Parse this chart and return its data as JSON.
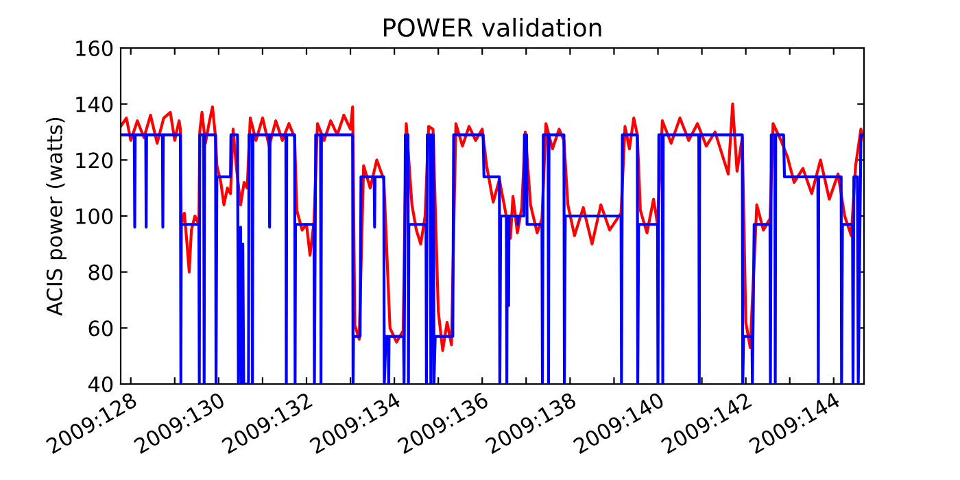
{
  "chart_data": {
    "type": "line",
    "title": "POWER validation",
    "ylabel": "ACIS power (watts)",
    "xlim": [
      "2009-05-07T18:29",
      "2009-05-24T16:34"
    ],
    "ylim": [
      40,
      160
    ],
    "xticks": [
      {
        "value": "2009-05-08",
        "label": "2009:128"
      },
      {
        "value": "2009-05-09",
        "label": null
      },
      {
        "value": "2009-05-10",
        "label": "2009:130"
      },
      {
        "value": "2009-05-11",
        "label": null
      },
      {
        "value": "2009-05-12",
        "label": "2009:132"
      },
      {
        "value": "2009-05-13",
        "label": null
      },
      {
        "value": "2009-05-14",
        "label": "2009:134"
      },
      {
        "value": "2009-05-15",
        "label": null
      },
      {
        "value": "2009-05-16",
        "label": "2009:136"
      },
      {
        "value": "2009-05-17",
        "label": null
      },
      {
        "value": "2009-05-18",
        "label": "2009:138"
      },
      {
        "value": "2009-05-19",
        "label": null
      },
      {
        "value": "2009-05-20",
        "label": "2009:140"
      },
      {
        "value": "2009-05-21",
        "label": null
      },
      {
        "value": "2009-05-22",
        "label": "2009:142"
      },
      {
        "value": "2009-05-23",
        "label": null
      },
      {
        "value": "2009-05-24",
        "label": "2009:144"
      }
    ],
    "yticks": [
      40,
      60,
      80,
      100,
      120,
      140,
      160
    ],
    "grid": false,
    "legend": false,
    "marker": "none",
    "line_style": "solid",
    "series": [
      {
        "color": "#ff0000",
        "x": [
          "2009-05-07T18:29",
          "2009-05-07T21:36",
          "2009-05-08T00:00",
          "2009-05-08T03:36",
          "2009-05-08T07:12",
          "2009-05-08T10:48",
          "2009-05-08T14:24",
          "2009-05-08T18:00",
          "2009-05-08T21:36",
          "2009-05-09T00:00",
          "2009-05-09T02:24",
          "2009-05-09T03:07",
          "2009-05-09T03:36",
          "2009-05-09T05:17",
          "2009-05-09T06:43",
          "2009-05-09T07:55",
          "2009-05-09T09:07",
          "2009-05-09T11:02",
          "2009-05-09T13:12",
          "2009-05-09T13:41",
          "2009-05-09T14:53",
          "2009-05-09T16:48",
          "2009-05-09T18:43",
          "2009-05-09T20:38",
          "2009-05-09T22:19",
          "2009-05-09T23:02",
          "2009-05-10T01:12",
          "2009-05-10T02:53",
          "2009-05-10T04:48",
          "2009-05-10T06:29",
          "2009-05-10T07:55",
          "2009-05-10T09:36",
          "2009-05-10T12:00",
          "2009-05-10T13:55",
          "2009-05-10T15:36",
          "2009-05-10T17:17",
          "2009-05-10T20:24",
          "2009-05-11T00:00",
          "2009-05-11T03:36",
          "2009-05-11T07:12",
          "2009-05-11T10:48",
          "2009-05-11T14:24",
          "2009-05-11T17:31",
          "2009-05-11T18:43",
          "2009-05-11T21:36",
          "2009-05-12T00:00",
          "2009-05-12T01:55",
          "2009-05-12T04:05",
          "2009-05-12T06:00",
          "2009-05-12T09:36",
          "2009-05-12T13:12",
          "2009-05-12T16:48",
          "2009-05-12T20:24",
          "2009-05-13T00:00",
          "2009-05-13T01:12",
          "2009-05-13T02:24",
          "2009-05-13T04:48",
          "2009-05-13T07:12",
          "2009-05-13T10:48",
          "2009-05-13T14:24",
          "2009-05-13T18:14",
          "2009-05-13T21:36",
          "2009-05-14T01:12",
          "2009-05-14T04:48",
          "2009-05-14T06:29",
          "2009-05-14T09:36",
          "2009-05-14T12:00",
          "2009-05-14T14:24",
          "2009-05-14T16:48",
          "2009-05-14T18:43",
          "2009-05-14T21:07",
          "2009-05-15T00:00",
          "2009-05-15T02:24",
          "2009-05-15T04:48",
          "2009-05-15T07:12",
          "2009-05-15T09:36",
          "2009-05-15T13:12",
          "2009-05-15T16:48",
          "2009-05-15T20:24",
          "2009-05-16T00:00",
          "2009-05-16T02:24",
          "2009-05-16T06:00",
          "2009-05-16T09:22",
          "2009-05-16T12:00",
          "2009-05-16T15:22",
          "2009-05-16T16:48",
          "2009-05-16T19:12",
          "2009-05-16T21:36",
          "2009-05-16T23:31",
          "2009-05-17T02:24",
          "2009-05-17T06:00",
          "2009-05-17T08:38",
          "2009-05-17T10:48",
          "2009-05-17T14:24",
          "2009-05-17T18:00",
          "2009-05-17T20:38",
          "2009-05-17T22:48",
          "2009-05-18T02:24",
          "2009-05-18T07:12",
          "2009-05-18T12:00",
          "2009-05-18T16:48",
          "2009-05-18T21:36",
          "2009-05-19T03:50",
          "2009-05-19T06:00",
          "2009-05-19T08:24",
          "2009-05-19T10:48",
          "2009-05-19T12:43",
          "2009-05-19T14:24",
          "2009-05-19T18:00",
          "2009-05-19T21:36",
          "2009-05-19T23:46",
          "2009-05-20T02:24",
          "2009-05-20T07:12",
          "2009-05-20T12:00",
          "2009-05-20T16:48",
          "2009-05-20T21:36",
          "2009-05-21T02:24",
          "2009-05-21T07:12",
          "2009-05-21T12:00",
          "2009-05-21T14:24",
          "2009-05-21T16:48",
          "2009-05-21T19:12",
          "2009-05-21T22:05",
          "2009-05-22T00:00",
          "2009-05-22T02:24",
          "2009-05-22T06:00",
          "2009-05-22T09:36",
          "2009-05-22T13:12",
          "2009-05-22T14:53",
          "2009-05-22T19:12",
          "2009-05-22T22:48",
          "2009-05-23T02:24",
          "2009-05-23T07:12",
          "2009-05-23T12:00",
          "2009-05-23T16:48",
          "2009-05-23T21:36",
          "2009-05-24T02:24",
          "2009-05-24T06:00",
          "2009-05-24T09:36",
          "2009-05-24T12:00",
          "2009-05-24T14:53",
          "2009-05-24T16:34"
        ],
        "values": [
          132,
          135,
          127,
          134,
          128,
          136,
          126,
          135,
          137,
          127,
          134,
          131,
          97,
          101,
          90,
          80,
          95,
          100,
          97,
          130,
          137,
          126,
          133,
          139,
          128,
          118,
          112,
          104,
          110,
          108,
          131,
          118,
          104,
          112,
          110,
          135,
          127,
          135,
          125,
          134,
          127,
          133,
          128,
          102,
          95,
          97,
          86,
          98,
          133,
          127,
          134,
          129,
          136,
          131,
          139,
          61,
          56,
          118,
          110,
          120,
          113,
          60,
          55,
          59,
          133,
          104,
          95,
          90,
          100,
          132,
          131,
          66,
          52,
          62,
          54,
          133,
          125,
          132,
          127,
          131,
          118,
          105,
          113,
          104,
          92,
          107,
          94,
          103,
          130,
          104,
          94,
          99,
          133,
          124,
          131,
          127,
          104,
          93,
          103,
          90,
          104,
          95,
          101,
          132,
          124,
          135,
          129,
          102,
          94,
          106,
          97,
          134,
          126,
          135,
          127,
          133,
          125,
          130,
          120,
          115,
          140,
          116,
          128,
          62,
          53,
          104,
          95,
          99,
          133,
          127,
          121,
          112,
          117,
          108,
          120,
          106,
          115,
          100,
          93,
          118,
          131,
          127
        ]
      },
      {
        "color": "#0000ff",
        "x": [
          "2009-05-07T18:29",
          "2009-05-08T01:55",
          "2009-05-08T02:10",
          "2009-05-08T02:24",
          "2009-05-08T08:10",
          "2009-05-08T08:24",
          "2009-05-08T08:38",
          "2009-05-08T17:17",
          "2009-05-08T17:31",
          "2009-05-08T17:46",
          "2009-05-09T03:07",
          "2009-05-09T03:22",
          "2009-05-09T03:36",
          "2009-05-09T13:12",
          "2009-05-09T13:26",
          "2009-05-09T13:41",
          "2009-05-09T15:50",
          "2009-05-09T16:05",
          "2009-05-09T16:19",
          "2009-05-09T22:19",
          "2009-05-09T22:34",
          "2009-05-09T23:02",
          "2009-05-10T06:29",
          "2009-05-10T06:43",
          "2009-05-10T10:19",
          "2009-05-10T10:48",
          "2009-05-10T12:00",
          "2009-05-10T12:29",
          "2009-05-10T13:12",
          "2009-05-10T13:41",
          "2009-05-10T16:19",
          "2009-05-10T16:34",
          "2009-05-10T18:14",
          "2009-05-10T18:29",
          "2009-05-10T18:43",
          "2009-05-11T03:36",
          "2009-05-11T03:50",
          "2009-05-11T04:05",
          "2009-05-11T12:43",
          "2009-05-11T12:58",
          "2009-05-11T13:12",
          "2009-05-11T17:31",
          "2009-05-11T17:46",
          "2009-05-11T18:00",
          "2009-05-12T04:05",
          "2009-05-12T04:19",
          "2009-05-12T05:02",
          "2009-05-12T07:41",
          "2009-05-12T07:55",
          "2009-05-12T08:10",
          "2009-05-13T01:12",
          "2009-05-13T01:26",
          "2009-05-13T01:41",
          "2009-05-13T05:17",
          "2009-05-13T05:46",
          "2009-05-13T12:58",
          "2009-05-13T13:12",
          "2009-05-13T13:26",
          "2009-05-13T18:14",
          "2009-05-13T18:29",
          "2009-05-13T19:26",
          "2009-05-13T20:38",
          "2009-05-13T20:53",
          "2009-05-13T21:07",
          "2009-05-14T05:02",
          "2009-05-14T05:17",
          "2009-05-14T06:00",
          "2009-05-14T07:26",
          "2009-05-14T07:41",
          "2009-05-14T07:55",
          "2009-05-14T17:17",
          "2009-05-14T17:31",
          "2009-05-14T18:00",
          "2009-05-14T19:41",
          "2009-05-14T19:55",
          "2009-05-14T20:38",
          "2009-05-14T21:22",
          "2009-05-14T21:36",
          "2009-05-14T22:19",
          "2009-05-15T07:55",
          "2009-05-15T08:24",
          "2009-05-16T00:29",
          "2009-05-16T00:58",
          "2009-05-16T09:22",
          "2009-05-16T09:36",
          "2009-05-16T10:05",
          "2009-05-16T13:12",
          "2009-05-16T13:26",
          "2009-05-16T13:41",
          "2009-05-16T14:10",
          "2009-05-16T14:24",
          "2009-05-16T14:38",
          "2009-05-16T19:12",
          "2009-05-16T19:26",
          "2009-05-16T19:41",
          "2009-05-16T22:48",
          "2009-05-16T23:02",
          "2009-05-17T00:14",
          "2009-05-17T00:29",
          "2009-05-17T08:38",
          "2009-05-17T08:53",
          "2009-05-17T09:22",
          "2009-05-17T12:00",
          "2009-05-17T12:14",
          "2009-05-17T12:29",
          "2009-05-17T20:38",
          "2009-05-17T20:53",
          "2009-05-17T21:22",
          "2009-05-19T03:50",
          "2009-05-19T04:05",
          "2009-05-19T04:34",
          "2009-05-19T12:43",
          "2009-05-19T12:58",
          "2009-05-19T13:26",
          "2009-05-19T23:46",
          "2009-05-20T00:00",
          "2009-05-20T00:29",
          "2009-05-20T02:24",
          "2009-05-20T02:38",
          "2009-05-20T02:53",
          "2009-05-20T22:19",
          "2009-05-20T22:34",
          "2009-05-20T22:48",
          "2009-05-21T22:05",
          "2009-05-21T22:19",
          "2009-05-21T22:48",
          "2009-05-22T03:22",
          "2009-05-22T03:36",
          "2009-05-22T04:34",
          "2009-05-22T13:12",
          "2009-05-22T13:26",
          "2009-05-22T13:55",
          "2009-05-22T15:50",
          "2009-05-22T16:05",
          "2009-05-22T16:19",
          "2009-05-22T20:38",
          "2009-05-22T21:07",
          "2009-05-23T15:22",
          "2009-05-23T15:36",
          "2009-05-23T15:50",
          "2009-05-24T04:05",
          "2009-05-24T04:19",
          "2009-05-24T04:48",
          "2009-05-24T10:19",
          "2009-05-24T10:34",
          "2009-05-24T11:02",
          "2009-05-24T12:58",
          "2009-05-24T13:26",
          "2009-05-24T14:53",
          "2009-05-24T16:34"
        ],
        "values": [
          129,
          129,
          96,
          129,
          129,
          96,
          129,
          129,
          96,
          129,
          129,
          40,
          97,
          97,
          40,
          129,
          129,
          40,
          129,
          129,
          40,
          114,
          114,
          129,
          129,
          40,
          96,
          40,
          90,
          40,
          40,
          129,
          129,
          40,
          129,
          129,
          96,
          129,
          129,
          40,
          129,
          129,
          40,
          97,
          97,
          40,
          129,
          129,
          40,
          129,
          129,
          40,
          57,
          57,
          114,
          114,
          96,
          114,
          114,
          40,
          57,
          57,
          40,
          57,
          57,
          40,
          129,
          129,
          40,
          97,
          97,
          40,
          129,
          129,
          40,
          129,
          129,
          40,
          57,
          57,
          129,
          129,
          114,
          114,
          40,
          100,
          100,
          40,
          100,
          100,
          68,
          100,
          100,
          97,
          100,
          100,
          129,
          129,
          97,
          97,
          40,
          129,
          129,
          40,
          129,
          129,
          40,
          100,
          100,
          40,
          129,
          129,
          40,
          97,
          97,
          40,
          129,
          129,
          40,
          129,
          129,
          40,
          129,
          129,
          40,
          57,
          57,
          40,
          97,
          97,
          40,
          129,
          129,
          40,
          129,
          129,
          114,
          114,
          40,
          114,
          114,
          40,
          97,
          97,
          40,
          114,
          114,
          40,
          129,
          129
        ]
      }
    ]
  }
}
